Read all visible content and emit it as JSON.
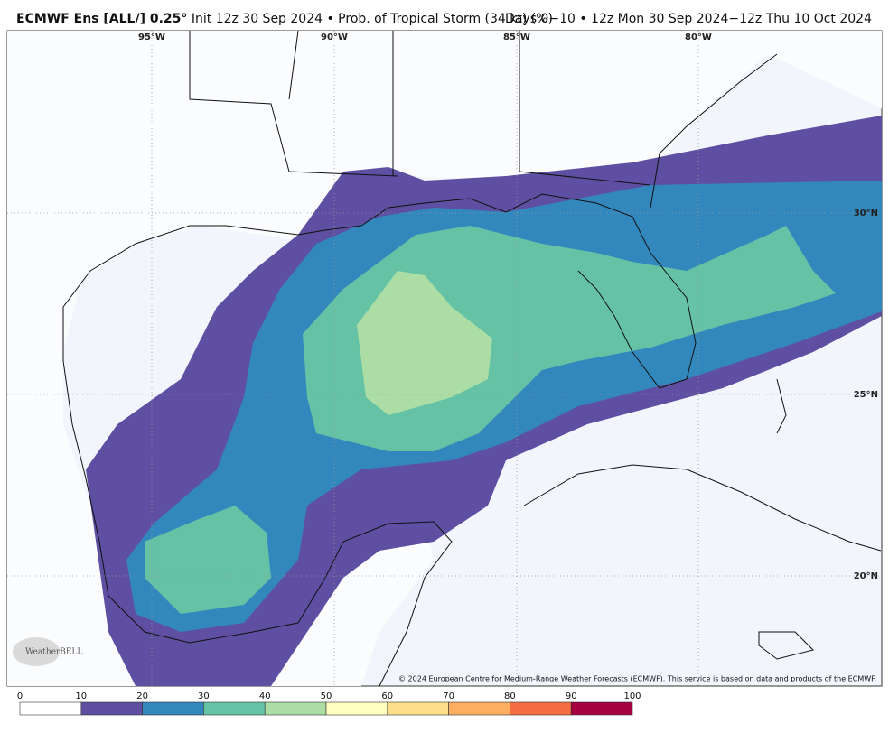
{
  "header": {
    "title_bold": "ECMWF Ens [ALL/] 0.25°",
    "title_rest": "Init 12z 30 Sep 2024 • Prob. of Tropical Storm (34 kt) (%)",
    "right": "Days 0−10 • 12z Mon 30 Sep 2024−12z Thu 10 Oct 2024"
  },
  "map": {
    "lon_labels": [
      "95°W",
      "90°W",
      "85°W",
      "80°W"
    ],
    "lat_labels": [
      "30°N",
      "25°N",
      "20°N"
    ],
    "copyright": "© 2024 European Centre for Medium-Range Weather Forecasts (ECMWF). This service is based on data and products of the ECMWF.",
    "logo": "WeatherBELL"
  },
  "colorbar": {
    "ticks": [
      0,
      10,
      20,
      30,
      40,
      50,
      60,
      70,
      80,
      90,
      100
    ],
    "colors": [
      "#ffffff",
      "#5e4fa2",
      "#3288bd",
      "#66c2a5",
      "#abdda4",
      "#ffffbf",
      "#fee08b",
      "#fdae61",
      "#f46d43",
      "#a50040"
    ]
  }
}
